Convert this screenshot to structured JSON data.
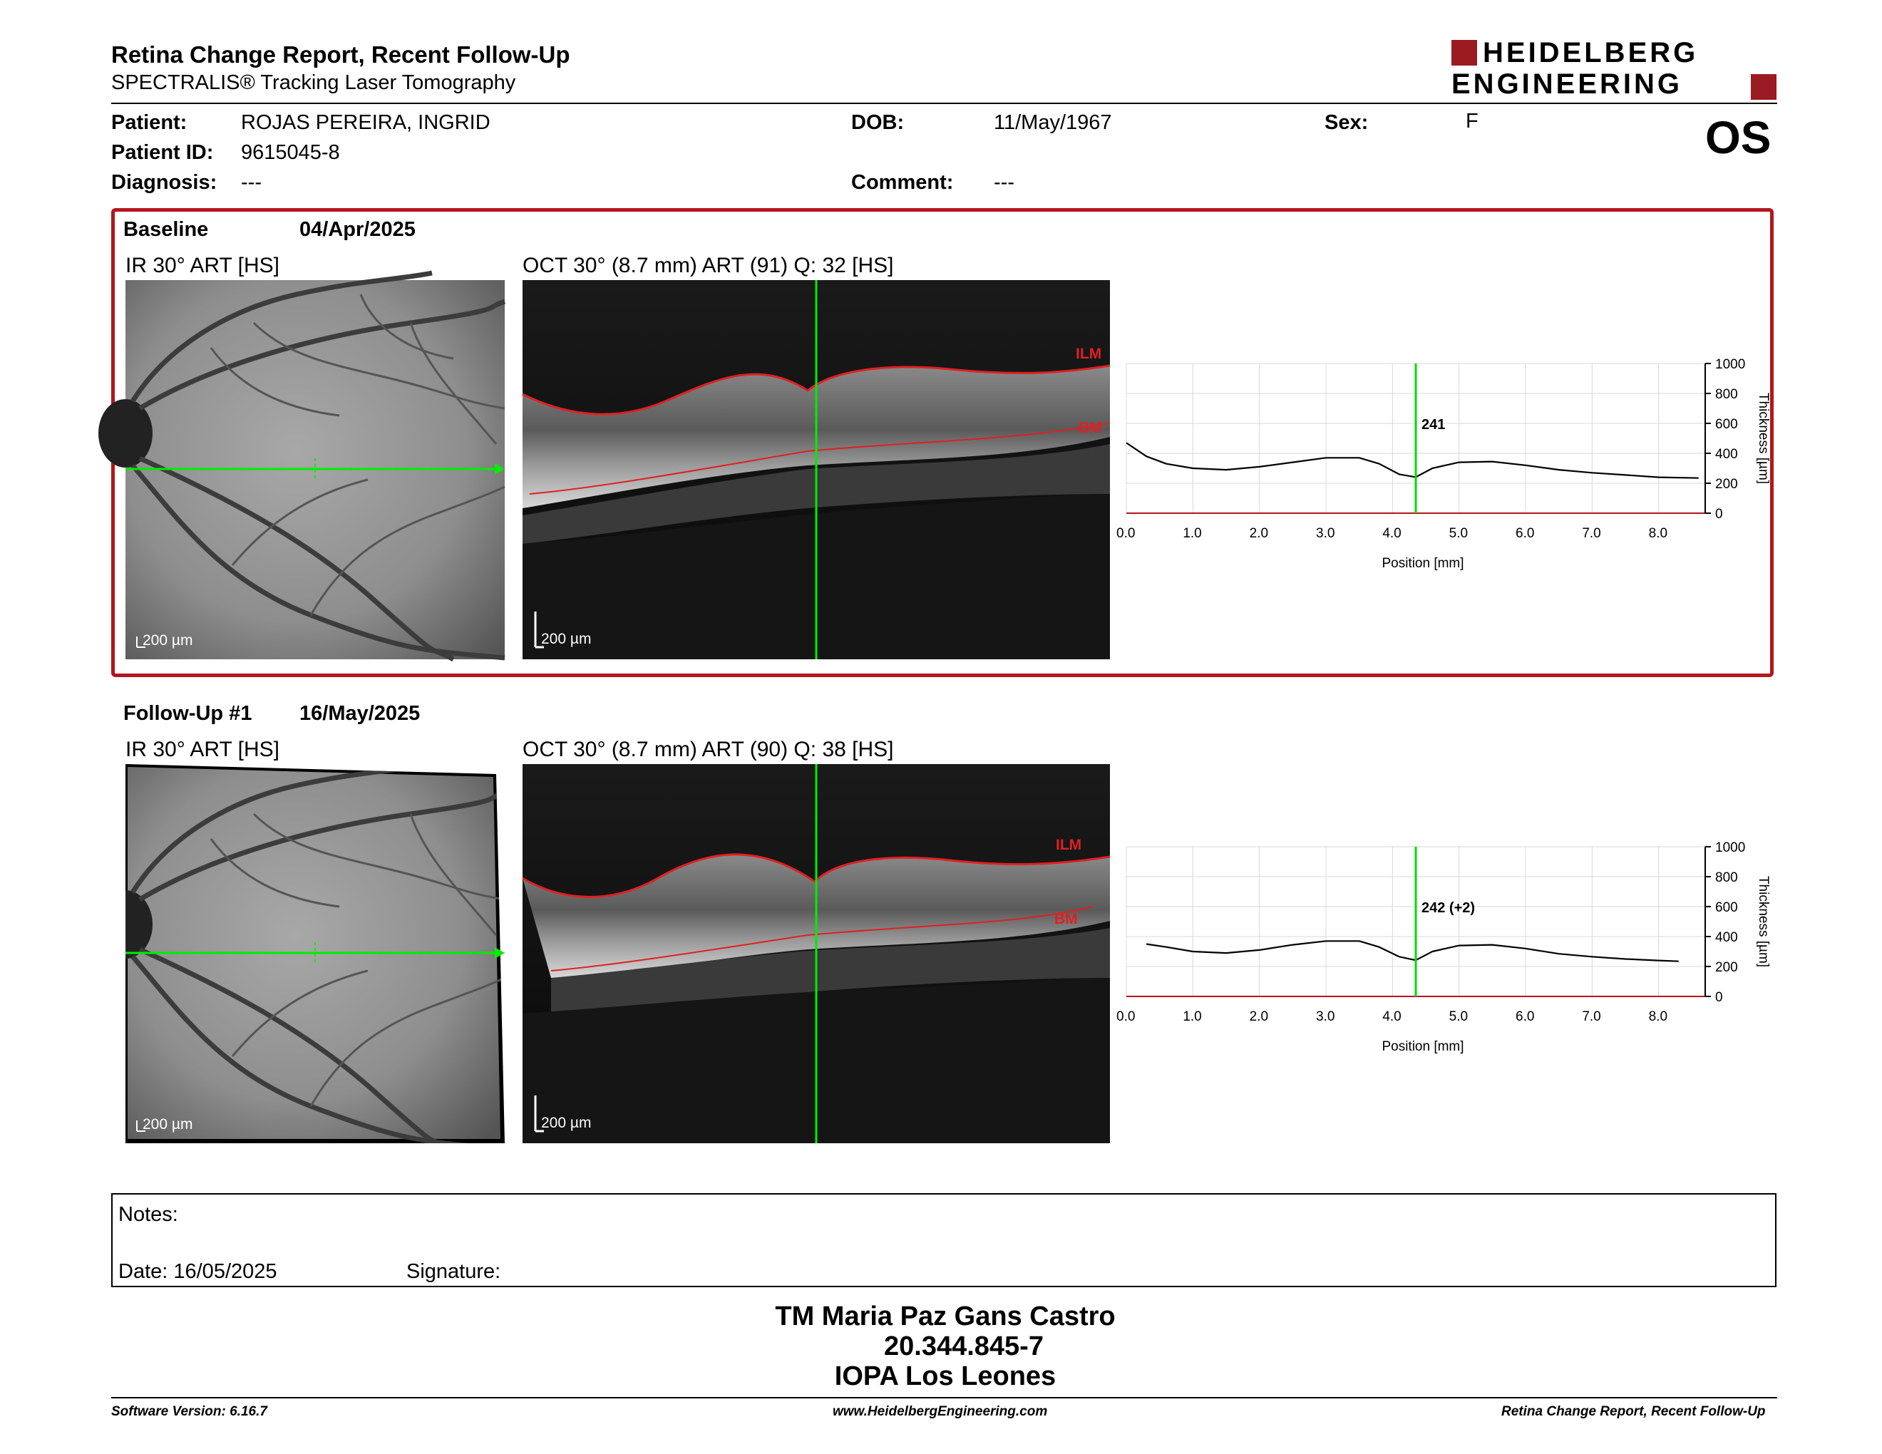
{
  "header": {
    "title": "Retina Change Report, Recent Follow-Up",
    "subtitle": "SPECTRALIS® Tracking Laser Tomography",
    "logo_line1": "HEIDELBERG",
    "logo_line2": "ENGINEERING",
    "eye": "OS"
  },
  "patient": {
    "patient_label": "Patient:",
    "patient_value": "ROJAS PEREIRA, INGRID",
    "id_label": "Patient ID:",
    "id_value": "9615045-8",
    "diagnosis_label": "Diagnosis:",
    "diagnosis_value": "---",
    "dob_label": "DOB:",
    "dob_value": "11/May/1967",
    "comment_label": "Comment:",
    "comment_value": "---",
    "sex_label": "Sex:",
    "sex_value": "F"
  },
  "exams": [
    {
      "name": "Baseline",
      "date": "04/Apr/2025",
      "ir_label": "IR 30° ART [HS]",
      "oct_label": "OCT 30° (8.7 mm) ART (91) Q: 32 [HS]",
      "ir_scale": "200 µm",
      "oct_scale": "200 µm",
      "ilm_label": "ILM",
      "bm_label": "BM",
      "marker_value": "241"
    },
    {
      "name": "Follow-Up #1",
      "date": "16/May/2025",
      "ir_label": "IR 30° ART [HS]",
      "oct_label": "OCT 30° (8.7 mm) ART (90) Q: 38 [HS]",
      "ir_scale": "200 µm",
      "oct_scale": "200 µm",
      "ilm_label": "ILM",
      "bm_label": "BM",
      "marker_value": "242 (+2)"
    }
  ],
  "chart_data": [
    {
      "type": "line",
      "xlabel": "Position [mm]",
      "ylabel": "Thickness [µm]",
      "xlim": [
        0,
        8.7
      ],
      "ylim": [
        0,
        1000
      ],
      "xticks": [
        "0.0",
        "1.0",
        "2.0",
        "3.0",
        "4.0",
        "5.0",
        "6.0",
        "7.0",
        "8.0"
      ],
      "yticks": [
        "0",
        "200",
        "400",
        "600",
        "800",
        "1000"
      ],
      "grid": true,
      "marker_x": 4.35,
      "marker_label": "241",
      "line_color": "#00dd00",
      "x": [
        0.0,
        0.3,
        0.6,
        1.0,
        1.5,
        2.0,
        2.5,
        3.0,
        3.5,
        3.8,
        4.1,
        4.35,
        4.6,
        5.0,
        5.5,
        6.0,
        6.5,
        7.0,
        7.5,
        8.0,
        8.6
      ],
      "values": [
        470,
        380,
        330,
        300,
        290,
        310,
        340,
        370,
        370,
        330,
        260,
        241,
        300,
        340,
        345,
        320,
        290,
        270,
        255,
        240,
        235
      ]
    },
    {
      "type": "line",
      "xlabel": "Position [mm]",
      "ylabel": "Thickness [µm]",
      "xlim": [
        0,
        8.7
      ],
      "ylim": [
        0,
        1000
      ],
      "xticks": [
        "0.0",
        "1.0",
        "2.0",
        "3.0",
        "4.0",
        "5.0",
        "6.0",
        "7.0",
        "8.0"
      ],
      "yticks": [
        "0",
        "200",
        "400",
        "600",
        "800",
        "1000"
      ],
      "grid": true,
      "marker_x": 4.35,
      "marker_label": "242 (+2)",
      "line_color": "#00dd00",
      "x": [
        0.3,
        0.6,
        1.0,
        1.5,
        2.0,
        2.5,
        3.0,
        3.5,
        3.8,
        4.1,
        4.35,
        4.6,
        5.0,
        5.5,
        6.0,
        6.5,
        7.0,
        7.5,
        8.0,
        8.3
      ],
      "values": [
        350,
        330,
        300,
        290,
        310,
        345,
        370,
        370,
        330,
        265,
        242,
        300,
        340,
        345,
        320,
        285,
        265,
        250,
        240,
        235
      ]
    }
  ],
  "notes": {
    "notes_label": "Notes:",
    "date_label": "Date: 16/05/2025",
    "signature_label": "Signature:"
  },
  "signatory": {
    "name": "TM Maria Paz Gans Castro",
    "id": "20.344.845-7",
    "institution": "IOPA Los Leones"
  },
  "footer": {
    "software": "Software Version: 6.16.7",
    "website": "www.HeidelbergEngineering.com",
    "report": "Retina Change Report, Recent Follow-Up"
  }
}
